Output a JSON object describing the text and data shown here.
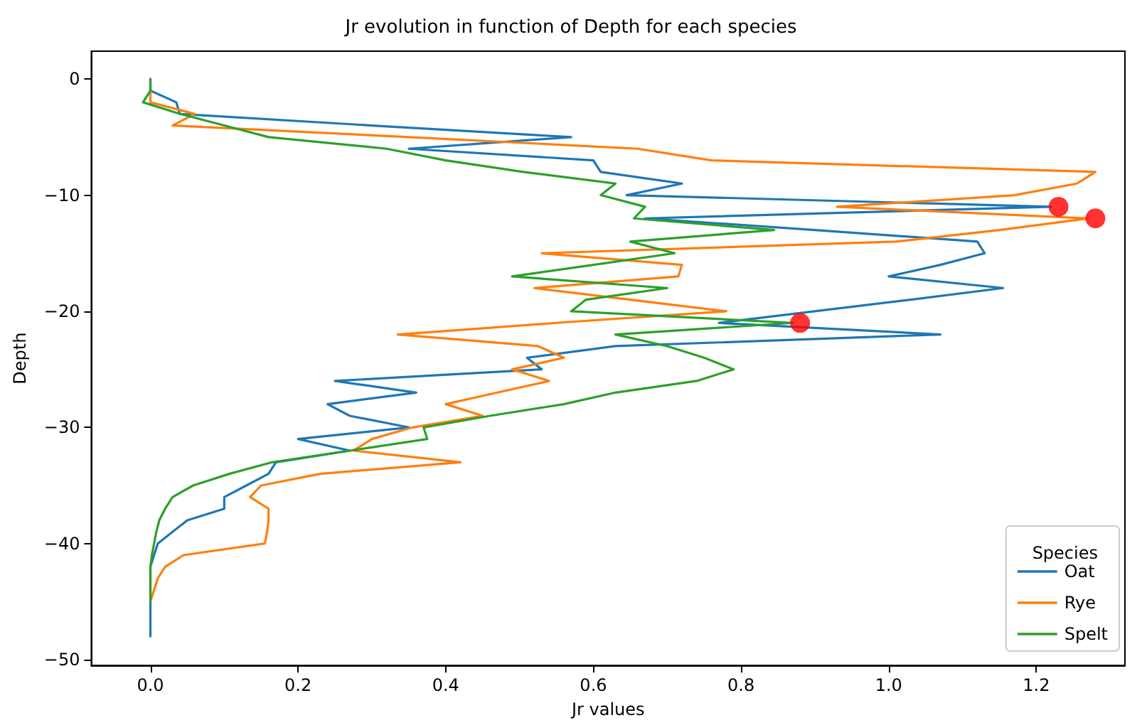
{
  "chart_data": {
    "type": "line",
    "title": "Jr evolution in function of Depth for each species",
    "xlabel": "Jr values",
    "ylabel": "Depth",
    "legend_title": "Species",
    "legend": "bottom right",
    "grid": false,
    "marker": "none",
    "xlim": [
      -0.08,
      1.32
    ],
    "ylim": [
      -50.5,
      2.4
    ],
    "xticks": [
      {
        "value": 0,
        "label": "0.0"
      },
      {
        "value": 0.2,
        "label": "0.2"
      },
      {
        "value": 0.4,
        "label": "0.4"
      },
      {
        "value": 0.6,
        "label": "0.6"
      },
      {
        "value": 0.8,
        "label": "0.8"
      },
      {
        "value": 1,
        "label": "1.0"
      },
      {
        "value": 1.2,
        "label": "1.2"
      }
    ],
    "yticks": [
      0,
      {
        "value": -10,
        "label": "−10"
      },
      {
        "value": -20,
        "label": "−20"
      },
      {
        "value": -30,
        "label": "−30"
      },
      {
        "value": -40,
        "label": "−40"
      },
      {
        "value": -50,
        "label": "−50"
      }
    ],
    "series": [
      {
        "name": "Oat",
        "color": "#1f77b4",
        "x": [
          0,
          0,
          0.035,
          0.04,
          0.3,
          0.57,
          0.35,
          0.6,
          0.61,
          0.72,
          0.645,
          1.22,
          0.67,
          0.9,
          1.12,
          1.13,
          1.07,
          1.0,
          1.155,
          1.03,
          0.9,
          0.77,
          1.07,
          0.63,
          0.51,
          0.53,
          0.25,
          0.36,
          0.24,
          0.27,
          0.35,
          0.2,
          0.27,
          0.17,
          0.16,
          0.13,
          0.1,
          0.1,
          0.05,
          0.03,
          0.01,
          0.005,
          0,
          0,
          0,
          0,
          0,
          0,
          0
        ],
        "values": [
          0,
          -1,
          -2,
          -3,
          -4,
          -5,
          -6,
          -7,
          -8,
          -9,
          -10,
          -11,
          -12,
          -13,
          -14,
          -15,
          -16,
          -17,
          -18,
          -19,
          -20,
          -21,
          -22,
          -23,
          -24,
          -25,
          -26,
          -27,
          -28,
          -29,
          -30,
          -31,
          -32,
          -33,
          -34,
          -35,
          -36,
          -37,
          -38,
          -39,
          -40,
          -41,
          -42,
          -43,
          -44,
          -45,
          -46,
          -47,
          -48
        ]
      },
      {
        "name": "Rye",
        "color": "#ff7f0e",
        "x": [
          0,
          0,
          0,
          0.06,
          0.03,
          0.35,
          0.66,
          0.76,
          1.28,
          1.255,
          1.17,
          0.93,
          1.27,
          1.15,
          1.01,
          0.53,
          0.72,
          0.715,
          0.52,
          0.65,
          0.78,
          0.55,
          0.335,
          0.525,
          0.56,
          0.49,
          0.54,
          0.47,
          0.4,
          0.45,
          0.355,
          0.3,
          0.275,
          0.42,
          0.23,
          0.15,
          0.135,
          0.16,
          0.16,
          0.158,
          0.155,
          0.045,
          0.02,
          0.01,
          0.005,
          0
        ],
        "values": [
          0,
          -1,
          -2,
          -3,
          -4,
          -5,
          -6,
          -7,
          -8,
          -9,
          -10,
          -11,
          -12,
          -13,
          -14,
          -15,
          -16,
          -17,
          -18,
          -19,
          -20,
          -21,
          -22,
          -23,
          -24,
          -25,
          -26,
          -27,
          -28,
          -29,
          -30,
          -31,
          -32,
          -33,
          -34,
          -35,
          -36,
          -37,
          -38,
          -39,
          -40,
          -41,
          -42,
          -43,
          -44,
          -45
        ]
      },
      {
        "name": "Spelt",
        "color": "#2ca02c",
        "x": [
          0,
          0,
          -0.01,
          0.04,
          0.1,
          0.16,
          0.32,
          0.4,
          0.505,
          0.63,
          0.61,
          0.67,
          0.655,
          0.845,
          0.65,
          0.71,
          0.6,
          0.49,
          0.7,
          0.59,
          0.57,
          0.87,
          0.63,
          0.7,
          0.75,
          0.79,
          0.74,
          0.63,
          0.56,
          0.46,
          0.37,
          0.375,
          0.27,
          0.165,
          0.107,
          0.058,
          0.03,
          0.02,
          0.012,
          0.008,
          0.005,
          0.002,
          0,
          0,
          0,
          0
        ],
        "values": [
          0,
          -1,
          -2,
          -3,
          -4,
          -5,
          -6,
          -7,
          -8,
          -9,
          -10,
          -11,
          -12,
          -13,
          -14,
          -15,
          -16,
          -17,
          -18,
          -19,
          -20,
          -21,
          -22,
          -23,
          -24,
          -25,
          -26,
          -27,
          -28,
          -29,
          -30,
          -31,
          -32,
          -33,
          -34,
          -35,
          -36,
          -37,
          -38,
          -39,
          -40,
          -41,
          -42,
          -43,
          -44,
          -45
        ]
      },
      {
        "type": "scatter",
        "marker": "circle",
        "color": "#ff0000",
        "x": [
          1.23,
          1.28,
          0.88
        ],
        "values": [
          -11,
          -12,
          -21
        ]
      }
    ]
  }
}
